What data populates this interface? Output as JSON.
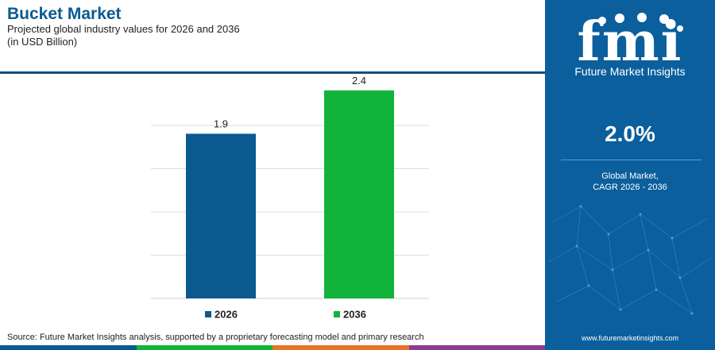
{
  "header": {
    "title": "Bucket Market",
    "subtitle": "Projected global industry values for 2026 and 2036",
    "unit": "(in USD Billion)"
  },
  "chart_data": {
    "type": "bar",
    "categories": [
      "2026",
      "2036"
    ],
    "values": [
      1.9,
      2.4
    ],
    "colors": [
      "#0b5a8f",
      "#12b33a"
    ],
    "data_labels": [
      "1.9",
      "2.4"
    ],
    "legend": [
      "2026",
      "2036"
    ],
    "legend_position": "bottom",
    "ylim": [
      0,
      2.5
    ],
    "grid": true,
    "axis_tick_labels": false
  },
  "footer": {
    "source": "Source: Future Market Insights analysis, supported by a proprietary forecasting model and primary research",
    "bar_colors": [
      "#0b5a8f",
      "#12b33a",
      "#e8732a",
      "#8a3c8f"
    ]
  },
  "sidebar": {
    "logo_letters": "fmi",
    "brand": "Future Market Insights",
    "cagr_value": "2.0%",
    "cagr_label_line1": "Global Market,",
    "cagr_label_line2": "CAGR 2026 - 2036",
    "url": "www.futuremarketinsights.com",
    "background": "#0b5f9d"
  }
}
